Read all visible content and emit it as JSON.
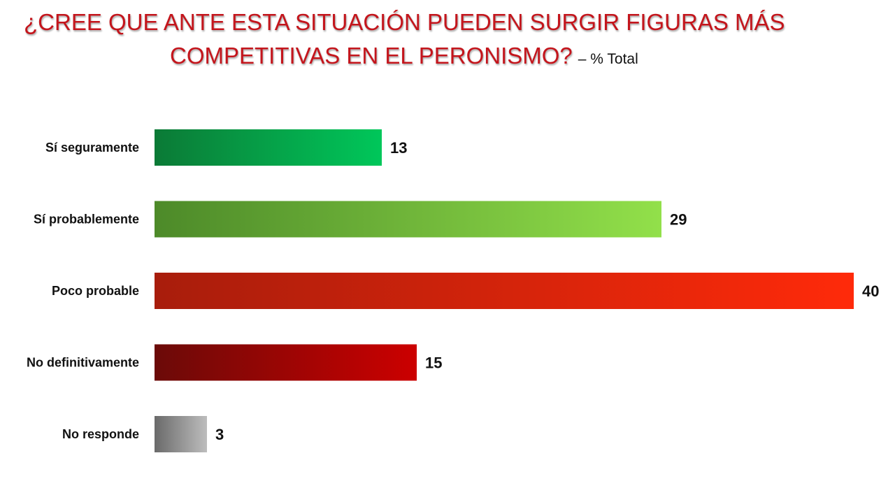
{
  "title": {
    "line1": "¿CREE QUE ANTE ESTA SITUACIÓN PUEDEN SURGIR FIGURAS MÁS",
    "line2": "COMPETITIVAS EN EL PERONISMO?",
    "subtitle": "– % Total"
  },
  "colors": {
    "title": "#c4151c"
  },
  "chart_data": {
    "type": "bar",
    "orientation": "horizontal",
    "categories": [
      "Sí seguramente",
      "Sí probablemente",
      "Poco probable",
      "No definitivamente",
      "No responde"
    ],
    "values": [
      13,
      29,
      40,
      15,
      3
    ],
    "value_labels": [
      "13",
      "29",
      "40",
      "15",
      "3"
    ],
    "xlim": [
      0,
      40
    ],
    "grid": false,
    "bar_gradients": [
      [
        "#0b7a36",
        "#00c75a"
      ],
      [
        "#4d8a29",
        "#92e04a"
      ],
      [
        "#a81d0c",
        "#ff2a0a"
      ],
      [
        "#6b0a08",
        "#cc0000"
      ],
      [
        "#6a6a6a",
        "#bdbdbd"
      ]
    ]
  }
}
